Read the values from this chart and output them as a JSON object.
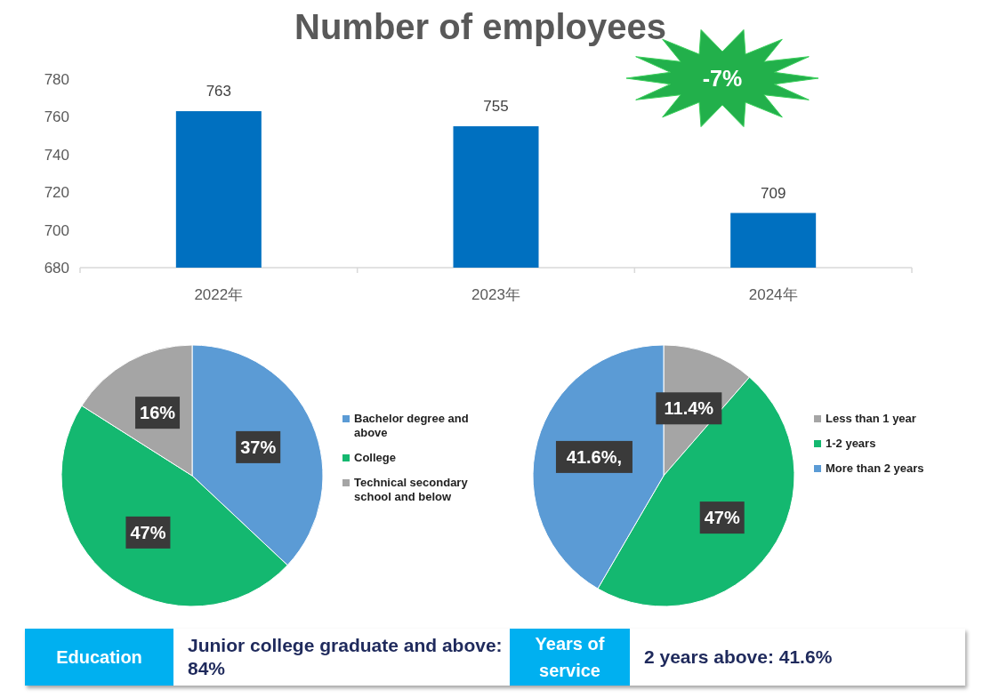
{
  "chart_data": [
    {
      "type": "bar",
      "title": "Number of employees",
      "categories": [
        "2022年",
        "2023年",
        "2024年"
      ],
      "values": [
        763,
        755,
        709
      ],
      "color": "#0070c0",
      "ylim": [
        680,
        780
      ],
      "yticks": [
        680,
        700,
        720,
        740,
        760,
        780
      ],
      "data_labels": true,
      "annotations": [
        "-7%"
      ]
    },
    {
      "type": "pie",
      "categories": [
        "Bachelor degree and above",
        "College",
        "Technical secondary school and below"
      ],
      "values": [
        37,
        47,
        16
      ],
      "colors": [
        "#5b9bd5",
        "#14b870",
        "#a5a5a5"
      ],
      "value_labels": [
        "37%",
        "47%",
        "16%"
      ],
      "legend": "right"
    },
    {
      "type": "pie",
      "categories": [
        "Less than 1 year",
        "1-2 years",
        "More than 2 years"
      ],
      "values": [
        11.4,
        47,
        41.6
      ],
      "colors": [
        "#a5a5a5",
        "#14b870",
        "#5b9bd5"
      ],
      "value_labels": [
        "11.4%",
        "47%",
        "41.6%,"
      ],
      "legend": "right"
    },
    {
      "type": "other",
      "annotations": [
        "Education",
        "Junior college graduate and above: 84%",
        "Years of service",
        "2 years above: 41.6%"
      ]
    }
  ]
}
